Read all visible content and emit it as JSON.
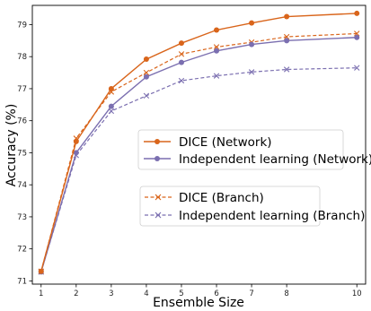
{
  "chart_data": {
    "type": "line",
    "xlabel": "Ensemble Size",
    "ylabel": "Accuracy (%)",
    "x": [
      1,
      2,
      3,
      4,
      5,
      6,
      7,
      8,
      10
    ],
    "xticks": [
      "1",
      "2",
      "3",
      "4",
      "5",
      "6",
      "7",
      "8",
      "10"
    ],
    "yticks": [
      "71",
      "72",
      "73",
      "74",
      "75",
      "76",
      "77",
      "78",
      "79"
    ],
    "xlim": [
      0.75,
      10.25
    ],
    "ylim": [
      70.9,
      79.6
    ],
    "grid": false,
    "series": [
      {
        "name": "DICE (Network)",
        "color": "#d9651b",
        "linestyle": "solid",
        "marker": "circle",
        "values": [
          71.3,
          75.35,
          77.0,
          77.92,
          78.42,
          78.83,
          79.05,
          79.25,
          79.35
        ]
      },
      {
        "name": "Independent learning (Network)",
        "color": "#7b6fb0",
        "linestyle": "solid",
        "marker": "circle",
        "values": [
          71.28,
          75.0,
          76.45,
          77.37,
          77.82,
          78.18,
          78.38,
          78.5,
          78.6
        ]
      },
      {
        "name": "DICE (Branch)",
        "color": "#d9651b",
        "linestyle": "dashed",
        "marker": "x",
        "values": [
          71.3,
          75.45,
          76.9,
          77.5,
          78.08,
          78.3,
          78.45,
          78.62,
          78.72
        ]
      },
      {
        "name": "Independent learning (Branch)",
        "color": "#7b6fb0",
        "linestyle": "dashed",
        "marker": "x",
        "values": [
          71.28,
          74.92,
          76.3,
          76.78,
          77.25,
          77.4,
          77.52,
          77.6,
          77.65
        ]
      }
    ],
    "legend": [
      {
        "placement": "right-middle",
        "entries": [
          0,
          1
        ]
      },
      {
        "placement": "right-lower",
        "entries": [
          2,
          3
        ]
      }
    ]
  }
}
